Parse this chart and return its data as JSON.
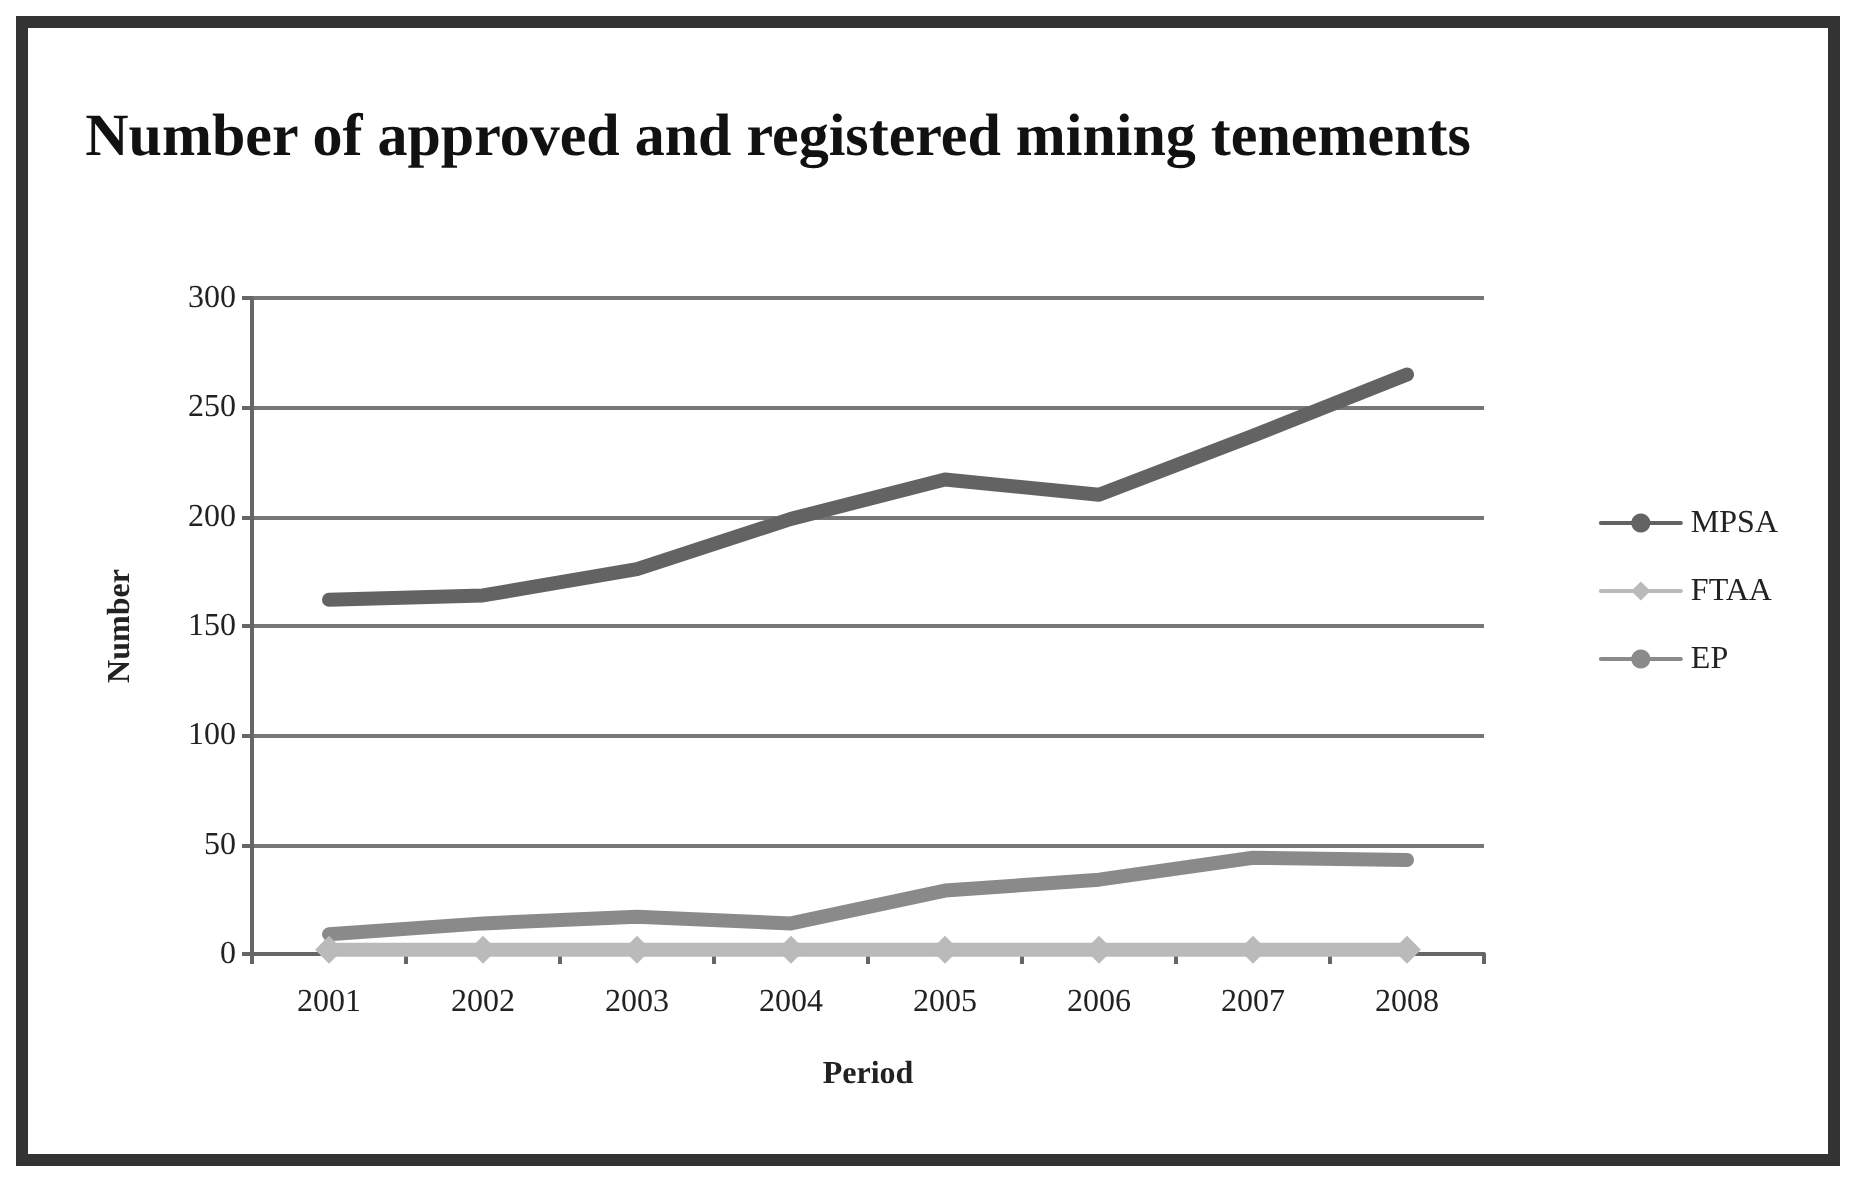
{
  "chart_data": {
    "type": "line",
    "title": "Number of approved and registered mining tenements",
    "xlabel": "Period",
    "ylabel": "Number",
    "categories": [
      "2001",
      "2002",
      "2003",
      "2004",
      "2005",
      "2006",
      "2007",
      "2008"
    ],
    "series": [
      {
        "name": "MPSA",
        "color": "#636363",
        "marker": "none",
        "values": [
          162,
          164,
          176,
          199,
          217,
          210,
          237,
          265
        ]
      },
      {
        "name": "FTAA",
        "color": "#bababa",
        "marker": "diamond",
        "values": [
          2,
          2,
          2,
          2,
          2,
          2,
          2,
          2
        ]
      },
      {
        "name": "EP",
        "color": "#8a8a8a",
        "marker": "none",
        "values": [
          9,
          14,
          17,
          14,
          29,
          34,
          44,
          43
        ]
      }
    ],
    "ylim": [
      0,
      300
    ],
    "yticks": [
      0,
      50,
      100,
      150,
      200,
      250,
      300
    ],
    "grid": "y",
    "legend": "right",
    "line_style": "solid"
  }
}
